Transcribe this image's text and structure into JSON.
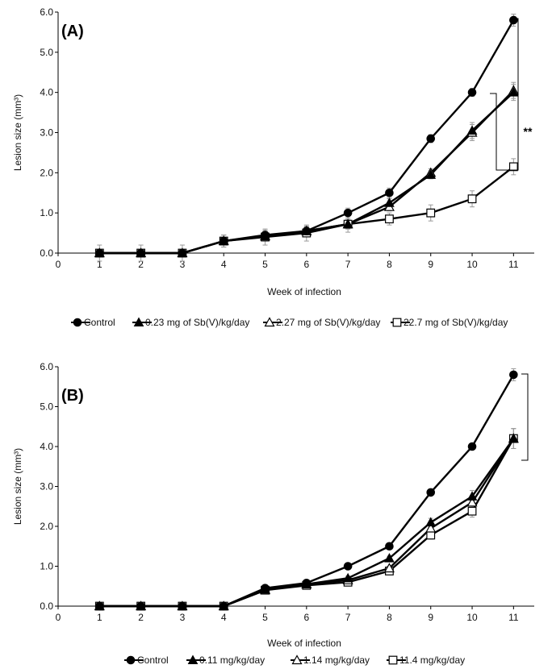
{
  "chart_data": [
    {
      "type": "line",
      "panel_label": "(A)",
      "xlabel": "Week of infection",
      "ylabel": "Lesion size (mm³)",
      "xlim": [
        0,
        11.5
      ],
      "ylim": [
        0,
        6.0
      ],
      "x_ticks": [
        "0",
        "1",
        "2",
        "3",
        "4",
        "5",
        "6",
        "7",
        "8",
        "9",
        "10",
        "11"
      ],
      "y_ticks": [
        "0.0",
        "1.0",
        "2.0",
        "3.0",
        "4.0",
        "5.0",
        "6.0"
      ],
      "x": [
        1,
        2,
        3,
        4,
        5,
        6,
        7,
        8,
        9,
        10,
        11
      ],
      "series": [
        {
          "name": "Control",
          "marker": "filled-circle",
          "values": [
            0,
            0,
            0,
            0.3,
            0.45,
            0.55,
            1.0,
            1.5,
            2.85,
            4.0,
            5.8
          ],
          "errors": [
            0.2,
            0.2,
            0.2,
            0.15,
            0.12,
            0.12,
            0.12,
            0.12,
            0.1,
            0.1,
            0.15
          ]
        },
        {
          "name": "0.23 mg of Sb(V)/kg/day",
          "marker": "filled-triangle",
          "values": [
            0,
            0,
            0,
            0.3,
            0.42,
            0.55,
            0.72,
            1.25,
            1.95,
            3.05,
            4.0
          ],
          "errors": [
            0,
            0,
            0,
            0.15,
            0.12,
            0.1,
            0.12,
            0.1,
            0.1,
            0.2,
            0.2
          ]
        },
        {
          "name": "2.27 mg of Sb(V)/kg/day",
          "marker": "open-triangle",
          "values": [
            0,
            0,
            0,
            0.3,
            0.42,
            0.55,
            0.72,
            1.15,
            2.0,
            3.0,
            4.05
          ],
          "errors": [
            0,
            0,
            0,
            0.15,
            0.12,
            0.1,
            0.12,
            0.1,
            0.1,
            0.2,
            0.2
          ]
        },
        {
          "name": "22.7 mg of Sb(V)/kg/day",
          "marker": "open-square",
          "values": [
            0,
            0,
            0,
            0.3,
            0.4,
            0.5,
            0.72,
            0.85,
            1.0,
            1.35,
            2.15
          ],
          "errors": [
            0,
            0,
            0,
            0.15,
            0.2,
            0.2,
            0.2,
            0.15,
            0.2,
            0.2,
            0.2
          ]
        }
      ],
      "significance": "**",
      "legend_position": "bottom"
    },
    {
      "type": "line",
      "panel_label": "(B)",
      "xlabel": "Week of infection",
      "ylabel": "Lesion size (mm³)",
      "xlim": [
        0,
        11.5
      ],
      "ylim": [
        0,
        6.0
      ],
      "x_ticks": [
        "0",
        "1",
        "2",
        "3",
        "4",
        "5",
        "6",
        "7",
        "8",
        "9",
        "10",
        "11"
      ],
      "y_ticks": [
        "0.0",
        "1.0",
        "2.0",
        "3.0",
        "4.0",
        "5.0",
        "6.0"
      ],
      "x": [
        1,
        2,
        3,
        4,
        5,
        6,
        7,
        8,
        9,
        10,
        11
      ],
      "series": [
        {
          "name": "Control",
          "marker": "filled-circle",
          "values": [
            0,
            0,
            0,
            0,
            0.45,
            0.58,
            1.0,
            1.5,
            2.85,
            4.0,
            5.8
          ],
          "errors": [
            0,
            0,
            0,
            0,
            0.05,
            0.05,
            0.05,
            0.05,
            0.05,
            0.05,
            0.15
          ]
        },
        {
          "name": "0.11 mg/kg/day",
          "marker": "filled-triangle",
          "values": [
            0,
            0,
            0,
            0,
            0.42,
            0.55,
            0.7,
            1.2,
            2.1,
            2.75,
            4.2
          ],
          "errors": [
            0,
            0,
            0,
            0,
            0.05,
            0.05,
            0.05,
            0.05,
            0.1,
            0.15,
            0.25
          ]
        },
        {
          "name": "1.14 mg/kg/day",
          "marker": "open-triangle",
          "values": [
            0,
            0,
            0,
            0,
            0.4,
            0.55,
            0.65,
            0.95,
            1.95,
            2.6,
            4.2
          ],
          "errors": [
            0,
            0,
            0,
            0,
            0.05,
            0.05,
            0.05,
            0.05,
            0.1,
            0.15,
            0.25
          ]
        },
        {
          "name": "11.4 mg/kg/day",
          "marker": "open-square",
          "values": [
            0,
            0,
            0,
            0,
            0.4,
            0.52,
            0.6,
            0.88,
            1.78,
            2.38,
            4.2
          ],
          "errors": [
            0,
            0,
            0,
            0,
            0.05,
            0.05,
            0.05,
            0.05,
            0.1,
            0.15,
            0.25
          ]
        }
      ],
      "significance": "",
      "legend_position": "bottom"
    }
  ]
}
